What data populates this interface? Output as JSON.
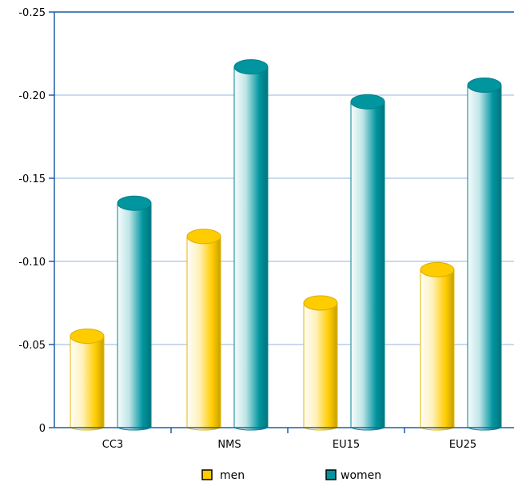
{
  "chart_data": {
    "type": "bar",
    "style": "3d-cylinder",
    "categories": [
      "CC3",
      "NMS",
      "EU15",
      "EU25"
    ],
    "series": [
      {
        "name": "men",
        "values": [
          -0.055,
          -0.115,
          -0.075,
          -0.095
        ],
        "color": "#ffcc00"
      },
      {
        "name": "women",
        "values": [
          -0.135,
          -0.217,
          -0.196,
          -0.206
        ],
        "color": "#00959f"
      }
    ],
    "y_axis": {
      "inverted": true,
      "range": [
        0,
        -0.25
      ],
      "ticks": [
        {
          "value": 0,
          "label": "0"
        },
        {
          "value": -0.05,
          "label": "-0.05"
        },
        {
          "value": -0.1,
          "label": "-0.10"
        },
        {
          "value": -0.15,
          "label": "-0.15"
        },
        {
          "value": -0.2,
          "label": "-0.20"
        },
        {
          "value": -0.25,
          "label": "-0.25"
        }
      ]
    },
    "grid": true,
    "grid_color": "#a9c4e4",
    "axis_color": "#1f5fa8",
    "legend": {
      "placement": "bottom-center"
    }
  }
}
